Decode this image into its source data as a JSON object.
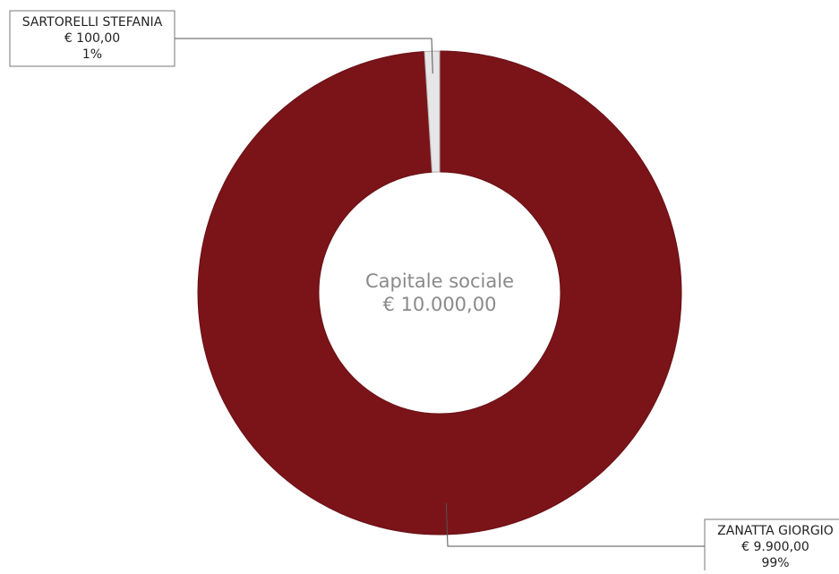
{
  "chart_data": {
    "type": "pie",
    "variant": "donut",
    "center_title": "Capitale sociale",
    "center_value": "€ 10.000,00",
    "slices": [
      {
        "name": "ZANATTA GIORGIO",
        "value": 9900,
        "value_label": "€ 9.900,00",
        "percent_label": "99%",
        "color": "#7a1419"
      },
      {
        "name": "SARTORELLI STEFANIA",
        "value": 100,
        "value_label": "€ 100,00",
        "percent_label": "1%",
        "color": "#e6e6e6"
      }
    ]
  }
}
